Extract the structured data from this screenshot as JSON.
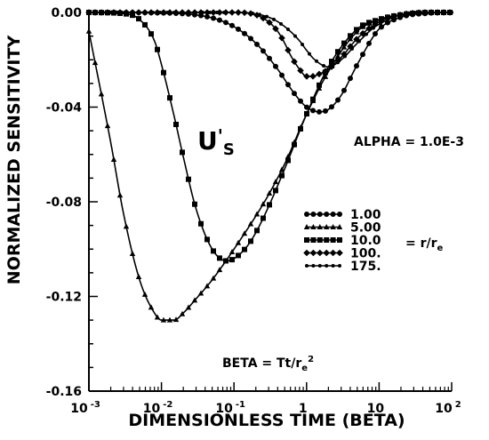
{
  "chart_data": {
    "type": "line",
    "x_scale": "log",
    "xlim": [
      0.001,
      100
    ],
    "ylim": [
      -0.16,
      0.0
    ],
    "xlabel": "DIMENSIONLESS TIME (BETA)",
    "ylabel": "NORMALIZED SENSITIVITY",
    "x_ticks": [
      {
        "value": 0.001,
        "base": "10",
        "exp": "-3"
      },
      {
        "value": 0.01,
        "base": "10",
        "exp": "-2"
      },
      {
        "value": 0.1,
        "base": "10",
        "exp": "-1"
      },
      {
        "value": 1,
        "base": "1",
        "exp": ""
      },
      {
        "value": 10,
        "base": "10",
        "exp": ""
      },
      {
        "value": 100,
        "base": "10",
        "exp": "2"
      }
    ],
    "y_ticks": [
      {
        "value": 0.0,
        "label": "0.00"
      },
      {
        "value": -0.04,
        "label": "-0.04"
      },
      {
        "value": -0.08,
        "label": "-0.08"
      },
      {
        "value": -0.12,
        "label": "-0.12"
      },
      {
        "value": -0.16,
        "label": "-0.16"
      }
    ],
    "grid": false,
    "annotations": {
      "variable_main": "U",
      "variable_prime": "'",
      "variable_sub": "S",
      "alpha": "ALPHA = 1.0E-3",
      "beta_prefix": "BETA = Tt/r",
      "beta_sub": "e",
      "beta_sup": "2",
      "legend_ratio_prefix": "= r/r",
      "legend_ratio_sub": "e"
    },
    "legend": {
      "placement": "center-right",
      "items": [
        {
          "label": "1.00",
          "marker": "circle"
        },
        {
          "label": "5.00",
          "marker": "triangle"
        },
        {
          "label": "10.0",
          "marker": "square"
        },
        {
          "label": "100.",
          "marker": "diamond"
        },
        {
          "label": "175.",
          "marker": "dot"
        }
      ]
    },
    "series": [
      {
        "marker": "circle",
        "x": [
          0.001,
          0.01,
          0.05,
          0.1,
          0.2,
          0.4,
          0.6,
          0.8,
          1,
          1.5,
          2,
          3,
          5,
          8,
          10,
          20,
          50,
          100
        ],
        "y": [
          0,
          -0.0002,
          -0.0023,
          -0.006,
          -0.013,
          -0.024,
          -0.032,
          -0.037,
          -0.04,
          -0.042,
          -0.041,
          -0.035,
          -0.022,
          -0.011,
          -0.007,
          -0.002,
          -0.0003,
          0
        ]
      },
      {
        "marker": "triangle",
        "x": [
          0.001,
          0.002,
          0.003,
          0.005,
          0.008,
          0.01,
          0.015,
          0.02,
          0.03,
          0.05,
          0.1,
          0.2,
          0.3,
          0.5,
          1,
          2,
          5,
          10,
          20,
          50,
          100
        ],
        "y": [
          -0.008,
          -0.055,
          -0.085,
          -0.113,
          -0.127,
          -0.13,
          -0.13,
          -0.127,
          -0.121,
          -0.113,
          -0.1,
          -0.086,
          -0.077,
          -0.064,
          -0.043,
          -0.025,
          -0.008,
          -0.003,
          -0.001,
          0,
          0
        ]
      },
      {
        "marker": "square",
        "x": [
          0.001,
          0.003,
          0.005,
          0.008,
          0.01,
          0.015,
          0.02,
          0.03,
          0.05,
          0.08,
          0.1,
          0.15,
          0.2,
          0.3,
          0.5,
          1,
          2,
          5,
          10,
          20,
          50,
          100
        ],
        "y": [
          0,
          -0.0005,
          -0.003,
          -0.012,
          -0.022,
          -0.044,
          -0.061,
          -0.083,
          -0.1,
          -0.105,
          -0.104,
          -0.099,
          -0.093,
          -0.082,
          -0.066,
          -0.043,
          -0.023,
          -0.007,
          -0.003,
          -0.001,
          0,
          0
        ]
      },
      {
        "marker": "diamond",
        "x": [
          0.001,
          0.1,
          0.2,
          0.3,
          0.4,
          0.5,
          0.6,
          0.8,
          1,
          1.2,
          1.5,
          2,
          3,
          5,
          10,
          20,
          50,
          100
        ],
        "y": [
          0,
          0,
          -0.001,
          -0.004,
          -0.008,
          -0.013,
          -0.018,
          -0.024,
          -0.027,
          -0.027,
          -0.026,
          -0.024,
          -0.019,
          -0.011,
          -0.004,
          -0.001,
          0,
          0
        ]
      },
      {
        "marker": "dot",
        "x": [
          0.001,
          0.1,
          0.3,
          0.5,
          0.8,
          1,
          1.3,
          2,
          3,
          5,
          8,
          10,
          20,
          50,
          100
        ],
        "y": [
          0,
          0,
          -0.002,
          -0.006,
          -0.012,
          -0.016,
          -0.02,
          -0.023,
          -0.02,
          -0.013,
          -0.007,
          -0.005,
          -0.001,
          0,
          0
        ]
      }
    ]
  }
}
